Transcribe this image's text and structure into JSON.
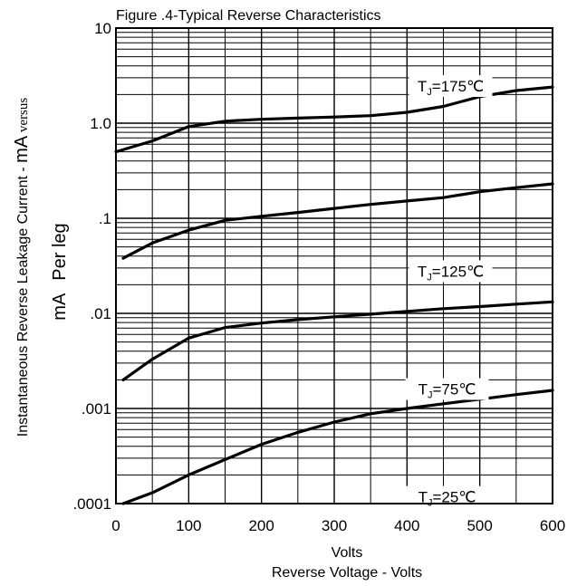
{
  "chart_data": {
    "type": "line",
    "title": "Figure .4-Typical Reverse Characteristics",
    "xlabel_line1": "Volts",
    "xlabel_line2": "Reverse Voltage - Volts",
    "ylabel_main": "Instantaneous Reverse Leakage Current - ",
    "ylabel_unit": "mA",
    "ylabel_versus": " versus",
    "ylabel2_unit": "mA",
    "ylabel2_text": "Per leg",
    "xlim": [
      0,
      600
    ],
    "ylim": [
      0.0001,
      10
    ],
    "y_scale": "log",
    "grid": true,
    "x_ticks": [
      0,
      100,
      200,
      300,
      400,
      500,
      600
    ],
    "x_tick_labels": [
      "0",
      "100",
      "200",
      "300",
      "400",
      "500",
      "600"
    ],
    "y_ticks": [
      0.0001,
      0.001,
      0.01,
      0.1,
      1,
      10
    ],
    "y_tick_labels": [
      ".0001",
      ".001",
      ".01",
      ".1",
      "1.0",
      "10"
    ],
    "series": [
      {
        "name": "TJ=175℃",
        "label_main": "T",
        "label_sub": "J",
        "label_rest": "=175℃",
        "x": [
          0,
          50,
          100,
          150,
          200,
          250,
          300,
          350,
          400,
          450,
          500,
          550,
          600
        ],
        "y": [
          0.5,
          0.65,
          0.92,
          1.05,
          1.1,
          1.13,
          1.16,
          1.2,
          1.3,
          1.5,
          1.9,
          2.2,
          2.4
        ]
      },
      {
        "name": "TJ=125℃",
        "label_main": "T",
        "label_sub": "J",
        "label_rest": "=125℃",
        "x": [
          10,
          50,
          100,
          150,
          200,
          250,
          300,
          350,
          400,
          450,
          500,
          550,
          600
        ],
        "y": [
          0.038,
          0.055,
          0.075,
          0.095,
          0.105,
          0.115,
          0.127,
          0.14,
          0.152,
          0.165,
          0.19,
          0.21,
          0.23
        ]
      },
      {
        "name": "TJ=75℃",
        "label_main": "T",
        "label_sub": "J",
        "label_rest": "=75℃",
        "x": [
          10,
          50,
          100,
          150,
          200,
          250,
          300,
          350,
          400,
          450,
          500,
          550,
          600
        ],
        "y": [
          0.002,
          0.0033,
          0.0055,
          0.0071,
          0.0079,
          0.0086,
          0.0092,
          0.0098,
          0.0105,
          0.0112,
          0.0118,
          0.0125,
          0.0132
        ]
      },
      {
        "name": "TJ=25℃",
        "label_main": "T",
        "label_sub": "J",
        "label_rest": "=25℃",
        "x": [
          10,
          50,
          100,
          150,
          200,
          250,
          300,
          350,
          400,
          450,
          500,
          550,
          600
        ],
        "y": [
          0.0001,
          0.00013,
          0.0002,
          0.00029,
          0.00042,
          0.00056,
          0.00072,
          0.00088,
          0.001,
          0.00112,
          0.00125,
          0.0014,
          0.00155
        ]
      }
    ],
    "series_label_positions": [
      {
        "x": 460,
        "y": 2.3
      },
      {
        "x": 460,
        "y": 0.026
      },
      {
        "x": 455,
        "y": 0.0015
      },
      {
        "x": 455,
        "y": 0.00011
      }
    ]
  }
}
